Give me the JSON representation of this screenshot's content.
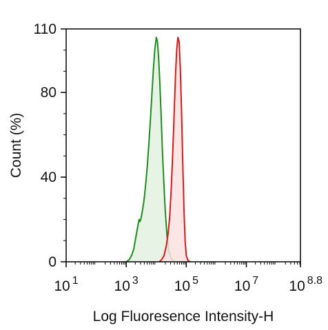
{
  "chart_data": {
    "type": "area",
    "title": "",
    "xlabel": "Log Fluoresence Intensity-H",
    "ylabel": "Count  (%)",
    "x_scale": "log10",
    "xlim_log10": [
      1,
      8.8
    ],
    "ylim": [
      0,
      110
    ],
    "grid": false,
    "legend": "none",
    "x_ticks": [
      {
        "base": "10",
        "exp": "1",
        "log10": 1
      },
      {
        "base": "10",
        "exp": "3",
        "log10": 3
      },
      {
        "base": "10",
        "exp": "5",
        "log10": 5
      },
      {
        "base": "10",
        "exp": "7",
        "log10": 7
      },
      {
        "base": "10",
        "exp": "8.8",
        "log10": 8.8
      }
    ],
    "y_ticks": [
      {
        "label": "0",
        "value": 0
      },
      {
        "label": "40",
        "value": 40
      },
      {
        "label": "80",
        "value": 80
      },
      {
        "label": "110",
        "value": 110
      }
    ],
    "series": [
      {
        "color": "#1f8a1f",
        "fill": "#e3f1e0",
        "points": [
          [
            3.0,
            0
          ],
          [
            3.1,
            1
          ],
          [
            3.18,
            3
          ],
          [
            3.25,
            6
          ],
          [
            3.3,
            10
          ],
          [
            3.35,
            14
          ],
          [
            3.4,
            18
          ],
          [
            3.43,
            20
          ],
          [
            3.46,
            19
          ],
          [
            3.5,
            21
          ],
          [
            3.55,
            25
          ],
          [
            3.6,
            30
          ],
          [
            3.65,
            37
          ],
          [
            3.7,
            45
          ],
          [
            3.75,
            55
          ],
          [
            3.8,
            66
          ],
          [
            3.85,
            78
          ],
          [
            3.9,
            90
          ],
          [
            3.95,
            100
          ],
          [
            4.0,
            106
          ],
          [
            4.04,
            104
          ],
          [
            4.08,
            96
          ],
          [
            4.12,
            84
          ],
          [
            4.16,
            70
          ],
          [
            4.2,
            54
          ],
          [
            4.25,
            38
          ],
          [
            4.3,
            24
          ],
          [
            4.36,
            12
          ],
          [
            4.42,
            5
          ],
          [
            4.5,
            1.5
          ],
          [
            4.6,
            0
          ]
        ]
      },
      {
        "color": "#d41a1a",
        "fill": "#fbe0e0",
        "points": [
          [
            4.1,
            0
          ],
          [
            4.18,
            1
          ],
          [
            4.26,
            3
          ],
          [
            4.34,
            8
          ],
          [
            4.4,
            14
          ],
          [
            4.45,
            22
          ],
          [
            4.5,
            35
          ],
          [
            4.55,
            52
          ],
          [
            4.6,
            72
          ],
          [
            4.64,
            88
          ],
          [
            4.68,
            100
          ],
          [
            4.72,
            106
          ],
          [
            4.76,
            104
          ],
          [
            4.8,
            92
          ],
          [
            4.84,
            72
          ],
          [
            4.88,
            48
          ],
          [
            4.92,
            26
          ],
          [
            4.96,
            10
          ],
          [
            5.0,
            3
          ],
          [
            5.05,
            0.8
          ],
          [
            5.12,
            0
          ]
        ]
      }
    ]
  }
}
